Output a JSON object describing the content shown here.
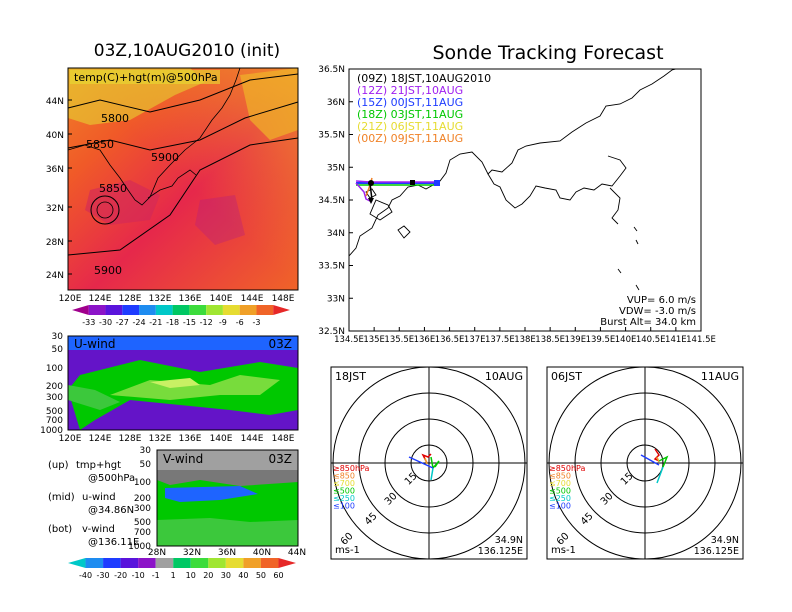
{
  "left": {
    "title": "03Z,10AUG2010 (init)",
    "map": {
      "field_label": "temp(C)+hgt(m)@500hPa",
      "lat_ticks": [
        "44N",
        "40N",
        "36N",
        "32N",
        "28N",
        "24N"
      ],
      "lon_ticks": [
        "120E",
        "124E",
        "128E",
        "132E",
        "136E",
        "140E",
        "144E",
        "148E"
      ],
      "contour_labels": [
        "5800",
        "5850",
        "5900",
        "5850",
        "5900"
      ],
      "colorbar": [
        "-33",
        "-30",
        "-27",
        "-24",
        "-21",
        "-18",
        "-15",
        "-12",
        "-9",
        "-6",
        "-3"
      ]
    },
    "uwind": {
      "title": "U-wind",
      "time": "03Z",
      "p_ticks": [
        "30",
        "50",
        "100",
        "200",
        "300",
        "500",
        "700",
        "1000"
      ],
      "lon_ticks": [
        "120E",
        "124E",
        "128E",
        "132E",
        "136E",
        "140E",
        "144E",
        "148E"
      ]
    },
    "vwind": {
      "title": "V-wind",
      "time": "03Z",
      "p_ticks": [
        "30",
        "50",
        "100",
        "200",
        "300",
        "500",
        "700",
        "1000"
      ],
      "lat_ticks": [
        "28N",
        "32N",
        "36N",
        "40N",
        "44N"
      ],
      "colorbar": [
        "-40",
        "-30",
        "-20",
        "-10",
        "-1",
        "1",
        "10",
        "20",
        "30",
        "40",
        "50",
        "60"
      ]
    },
    "legend": [
      {
        "tag": "(up)",
        "line1": "tmp+hgt",
        "line2": "@500hPa"
      },
      {
        "tag": "(mid)",
        "line1": "u-wind",
        "line2": "@34.86N"
      },
      {
        "tag": "(bot)",
        "line1": "v-wind",
        "line2": "@136.11E"
      }
    ]
  },
  "right": {
    "title": "Sonde Tracking Forecast",
    "tracks": [
      {
        "label": "(09Z)  18JST,10AUG2010",
        "color": "#000000"
      },
      {
        "label": "(12Z)  21JST,10AUG",
        "color": "#a020f0"
      },
      {
        "label": "(15Z)  00JST,11AUG",
        "color": "#1e3cff"
      },
      {
        "label": "(18Z)  03JST,11AUG",
        "color": "#00c800"
      },
      {
        "label": "(21Z)  06JST,11AUG",
        "color": "#e6dc32"
      },
      {
        "label": "(00Z)  09JST,11AUG",
        "color": "#f08228"
      }
    ],
    "lat_ticks": [
      "36.5N",
      "36N",
      "35.5N",
      "35N",
      "34.5N",
      "34N",
      "33.5N",
      "33N",
      "32.5N"
    ],
    "lon_ticks": [
      "134.5E",
      "135E",
      "135.5E",
      "136E",
      "136.5E",
      "137E",
      "137.5E",
      "138E",
      "138.5E",
      "139E",
      "139.5E",
      "140E",
      "140.5E",
      "141E",
      "141.5E"
    ],
    "params": [
      "VUP=  6.0 m/s",
      "VDW= -3.0 m/s",
      "Burst Alt= 34.0 km"
    ]
  },
  "hodographs": [
    {
      "time": "18JST",
      "date": "10AUG",
      "lat": "34.9N",
      "lon": "136.125E",
      "unit": "ms-1"
    },
    {
      "time": "06JST",
      "date": "11AUG",
      "lat": "34.9N",
      "lon": "136.125E",
      "unit": "ms-1"
    }
  ],
  "hodo_rings": [
    "15",
    "30",
    "45",
    "60"
  ],
  "hodo_levels": [
    {
      "label": "≥850hPa",
      "color": "#e00000"
    },
    {
      "label": "≤850",
      "color": "#f08228"
    },
    {
      "label": "≤700",
      "color": "#e6dc32"
    },
    {
      "label": "≤500",
      "color": "#00c800"
    },
    {
      "label": "≤250",
      "color": "#00c8c8"
    },
    {
      "label": "≤100",
      "color": "#1e3cff"
    }
  ],
  "chart_data": [
    {
      "type": "heatmap",
      "title": "03Z,10AUG2010 (init)",
      "field": "temp(C)+hgt(m)@500hPa",
      "xlim": [
        "120E",
        "150E"
      ],
      "ylim": [
        "22N",
        "47N"
      ],
      "contours": [
        5800,
        5850,
        5900
      ]
    },
    {
      "type": "line",
      "title": "Sonde Tracking Forecast",
      "xlim": [
        "134.5E",
        "141.5E"
      ],
      "ylim": [
        "32.5N",
        "36.5N"
      ],
      "launch": {
        "lat": "34.9N",
        "lon": "136.125E"
      }
    }
  ]
}
